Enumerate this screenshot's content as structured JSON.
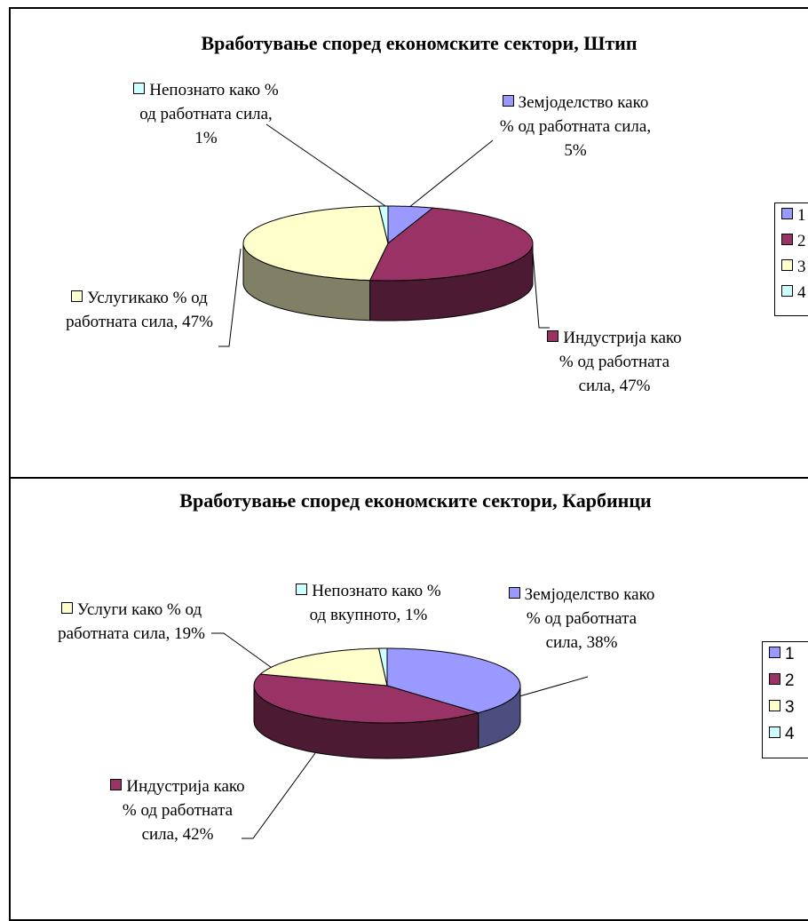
{
  "chart_data": [
    {
      "type": "pie",
      "title": "Вработување според економските сектори, Штип",
      "categories": [
        "1",
        "2",
        "3",
        "4"
      ],
      "values": [
        5,
        47,
        47,
        1
      ],
      "value_labels": [
        "Земјоделство како % од работната сила, 5%",
        "Индустрија како % од работната сила, 47%",
        "Услугикако % од работната сила, 47%",
        "Непознато како % од работната сила, 1%"
      ],
      "colors": [
        "#9999ff",
        "#993366",
        "#ffffcc",
        "#ccffff"
      ],
      "legend": "right"
    },
    {
      "type": "pie",
      "title": "Вработување според економските сектори, Карбинци",
      "categories": [
        "1",
        "2",
        "3",
        "4"
      ],
      "values": [
        38,
        42,
        19,
        1
      ],
      "value_labels": [
        "Земјоделство како % од работната сила, 38%",
        "Индустрија како % од работната сила, 42%",
        "Услуги како % од работната сила, 19%",
        "Непознато како % од вкупното, 1%"
      ],
      "colors": [
        "#9999ff",
        "#993366",
        "#ffffcc",
        "#ccffff"
      ],
      "legend": "right"
    }
  ]
}
